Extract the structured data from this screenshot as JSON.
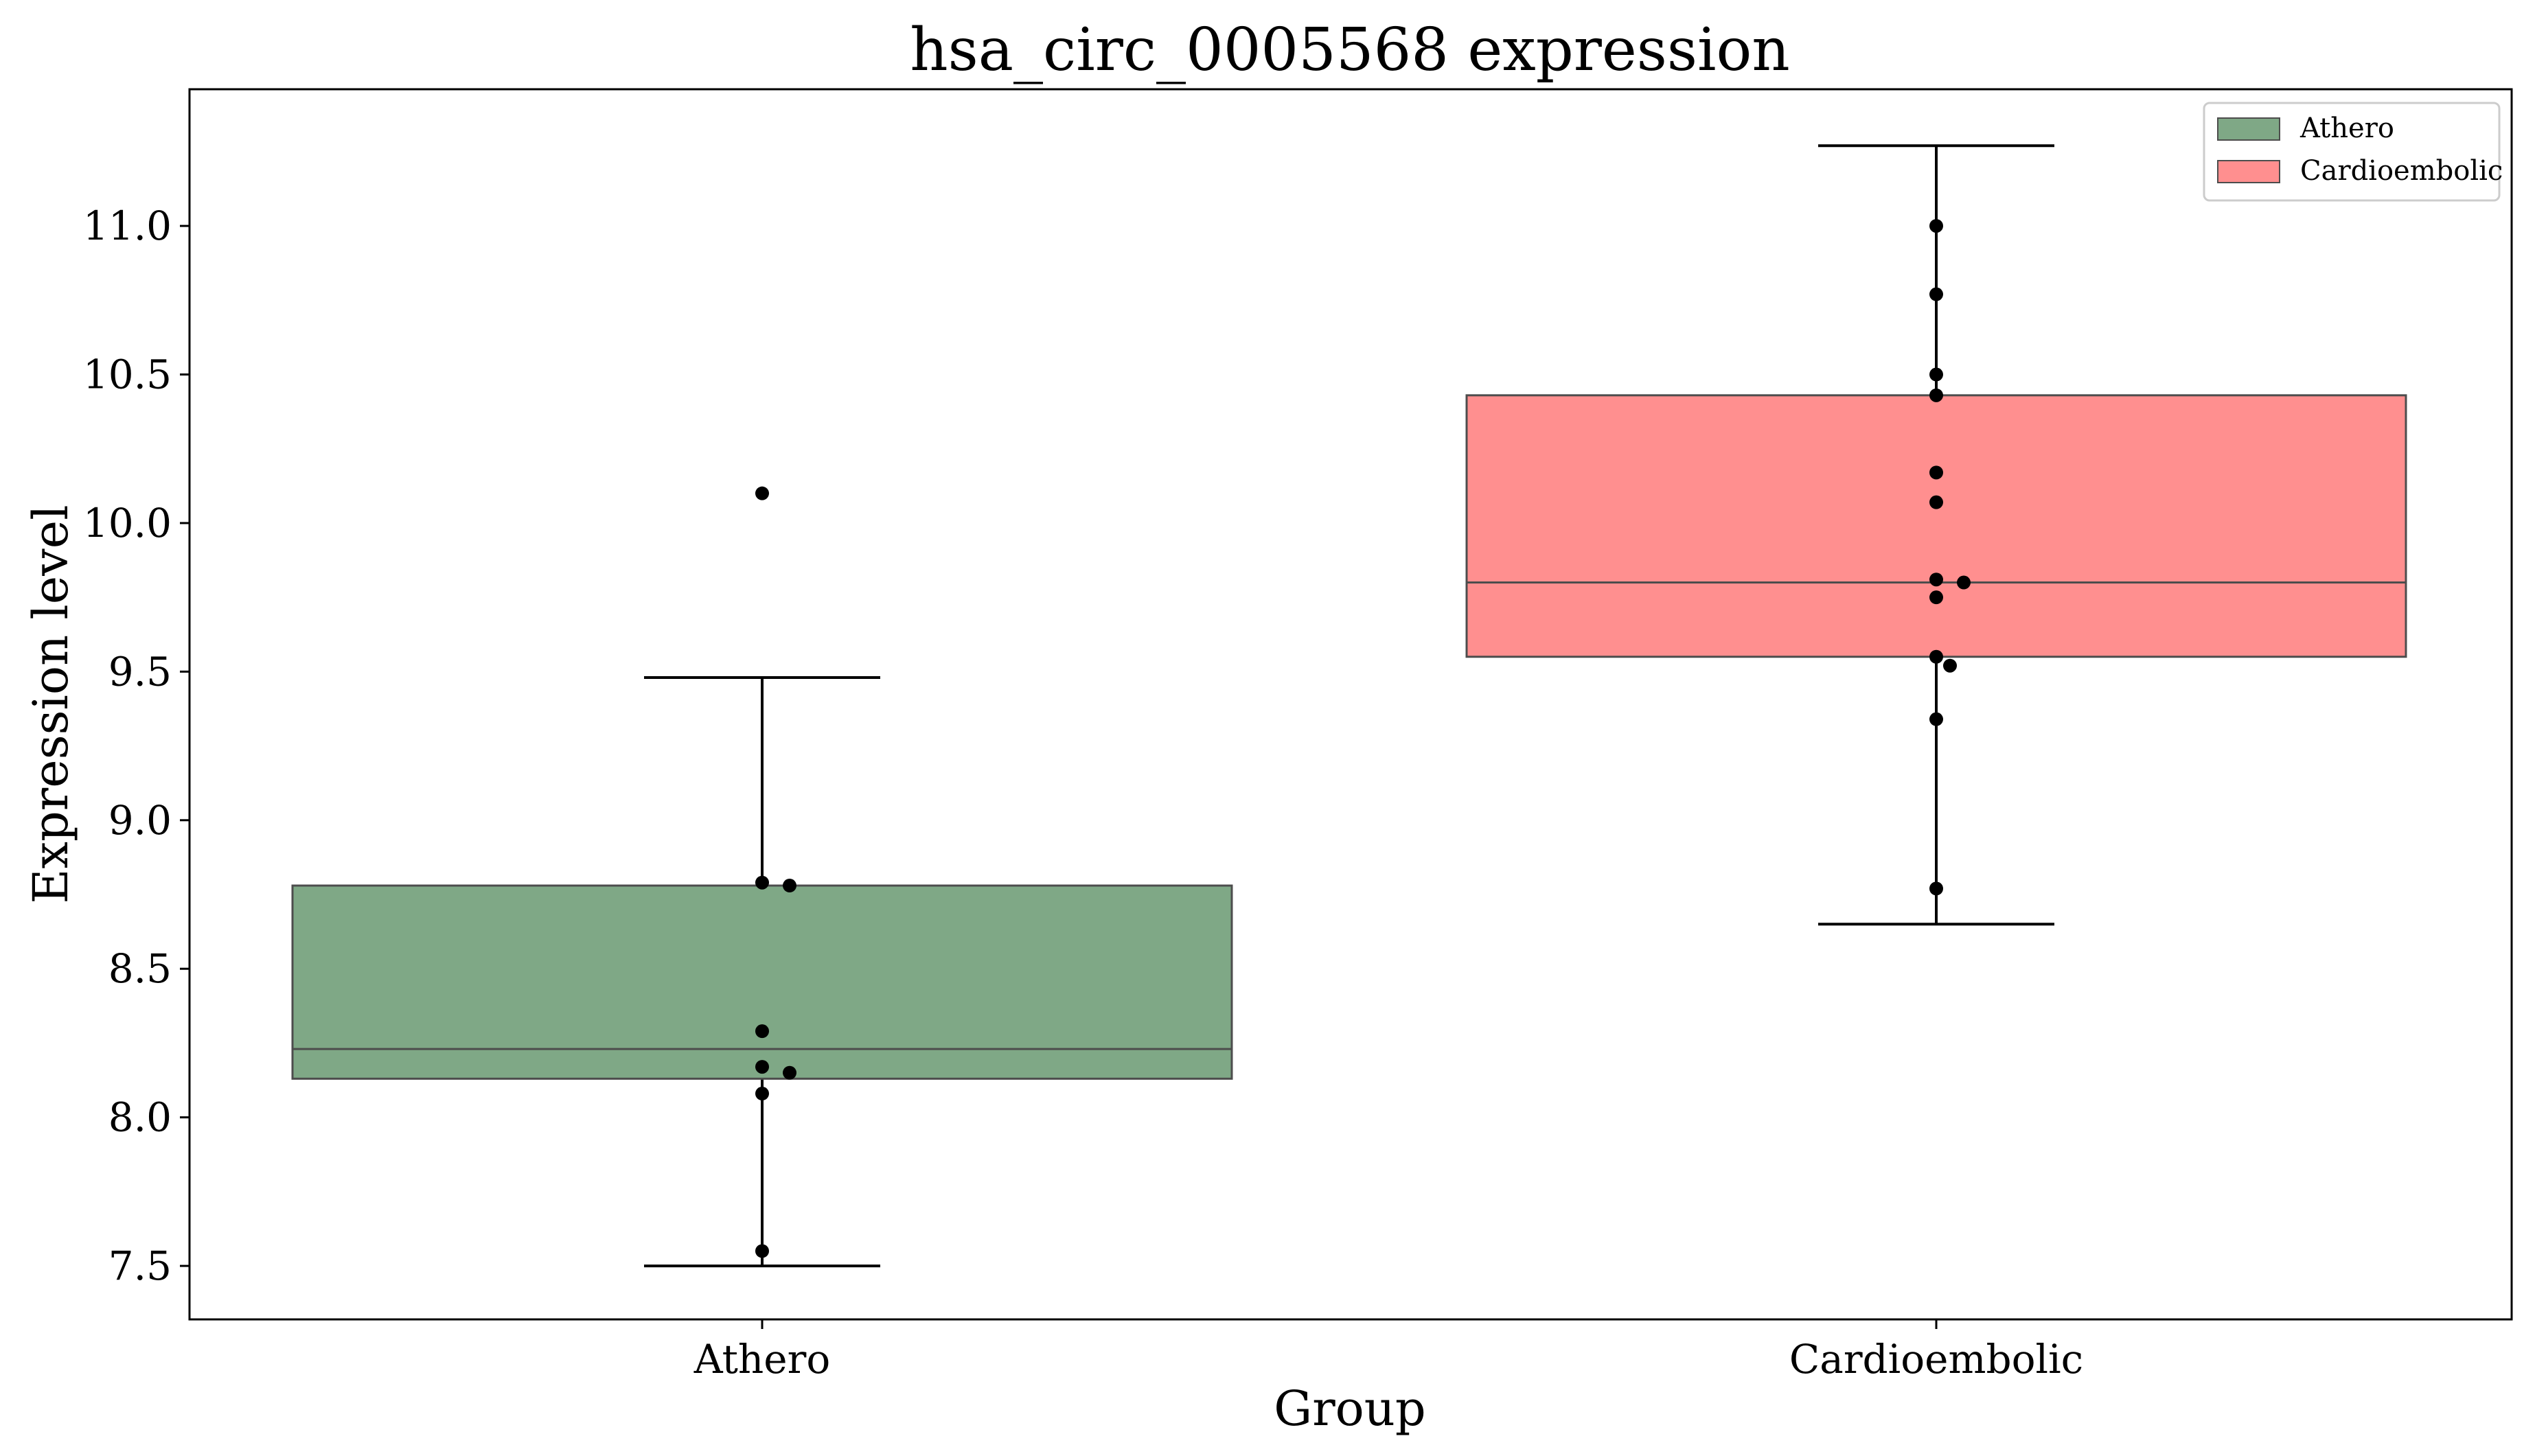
{
  "chart_data": {
    "type": "boxplot",
    "title": "hsa_circ_0005568 expression",
    "xlabel": "Group",
    "ylabel": "Expression level",
    "ylim": [
      7.32,
      11.46
    ],
    "yticks": [
      7.5,
      8.0,
      8.5,
      9.0,
      9.5,
      10.0,
      10.5,
      11.0
    ],
    "ytick_labels": [
      "7.5",
      "8.0",
      "8.5",
      "9.0",
      "9.5",
      "10.0",
      "10.5",
      "11.0"
    ],
    "legend_position": "top-right",
    "groups": [
      {
        "name": "Athero",
        "color": "#7fa886",
        "whisker_low": 7.5,
        "q1": 8.13,
        "median": 8.23,
        "q3": 8.78,
        "whisker_high": 9.48,
        "points": [
          10.1,
          8.79,
          8.78,
          8.29,
          8.17,
          8.15,
          8.08,
          7.55
        ]
      },
      {
        "name": "Cardioembolic",
        "color": "#ff8f8f",
        "whisker_low": 8.65,
        "q1": 9.55,
        "median": 9.8,
        "q3": 10.43,
        "whisker_high": 11.27,
        "points": [
          11.0,
          10.77,
          10.5,
          10.43,
          10.17,
          10.07,
          9.81,
          9.8,
          9.75,
          9.55,
          9.52,
          9.34,
          8.77
        ]
      }
    ],
    "legend": [
      {
        "label": "Athero",
        "color": "#7fa886"
      },
      {
        "label": "Cardioembolic",
        "color": "#ff8f8f"
      }
    ]
  }
}
